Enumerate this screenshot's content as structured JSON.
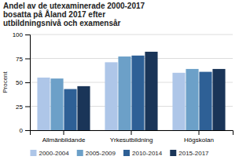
{
  "chart_data": {
    "type": "bar",
    "title": [
      "Andel av de utexaminerade 2000-2017",
      "bosatta på Åland 2017 efter",
      "utbildningsnivå och examensår"
    ],
    "ylabel": "Procent",
    "categories": [
      "Allmänbildande",
      "Yrkesutbildning",
      "Högskolan"
    ],
    "series": [
      {
        "name": "2000-2004",
        "color": "#aec6e8",
        "values": [
          55,
          71,
          60
        ]
      },
      {
        "name": "2005-2009",
        "color": "#6ca0c8",
        "values": [
          54,
          77,
          64
        ]
      },
      {
        "name": "2010-2014",
        "color": "#2e6096",
        "values": [
          43,
          78,
          61
        ]
      },
      {
        "name": "2015-2017",
        "color": "#1a3558",
        "values": [
          46,
          82,
          64
        ]
      }
    ],
    "ylim": [
      0,
      100
    ],
    "yticks": [
      0,
      25,
      50,
      75,
      100
    ],
    "grid": true,
    "legend": "bottom"
  }
}
